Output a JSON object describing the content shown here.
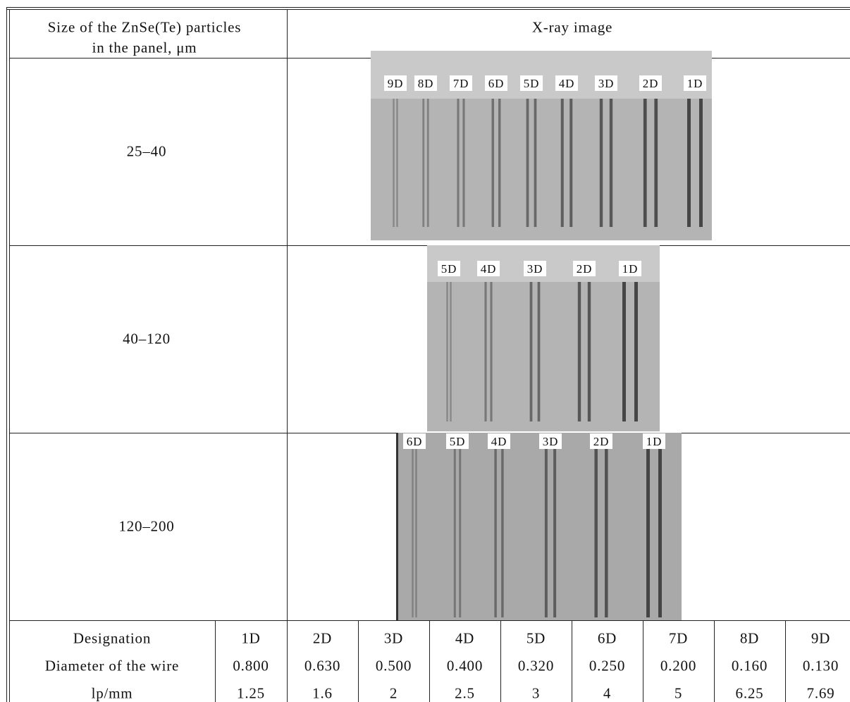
{
  "header": {
    "size_lines": [
      "Size of the ZnSe(Te) particles",
      "in the panel, μm"
    ],
    "image": "X-ray image"
  },
  "rows": [
    {
      "size": "25–40",
      "labels": [
        "9D",
        "8D",
        "7D",
        "6D",
        "5D",
        "4D",
        "3D",
        "2D",
        "1D"
      ]
    },
    {
      "size": "40–120",
      "labels": [
        "5D",
        "4D",
        "3D",
        "2D",
        "1D"
      ]
    },
    {
      "size": "120–200",
      "labels": [
        "6D",
        "5D",
        "4D",
        "3D",
        "2D",
        "1D"
      ]
    }
  ],
  "footer": [
    {
      "label": "Designation",
      "values": [
        "1D",
        "2D",
        "3D",
        "4D",
        "5D",
        "6D",
        "7D",
        "8D",
        "9D"
      ]
    },
    {
      "label": "Diameter of the wire",
      "values": [
        "0.800",
        "0.630",
        "0.500",
        "0.400",
        "0.320",
        "0.250",
        "0.200",
        "0.160",
        "0.130"
      ]
    },
    {
      "label": "lp/mm",
      "values": [
        "1.25",
        "1.6",
        "2",
        "2.5",
        "3",
        "4",
        "5",
        "6.25",
        "7.69"
      ]
    }
  ]
}
